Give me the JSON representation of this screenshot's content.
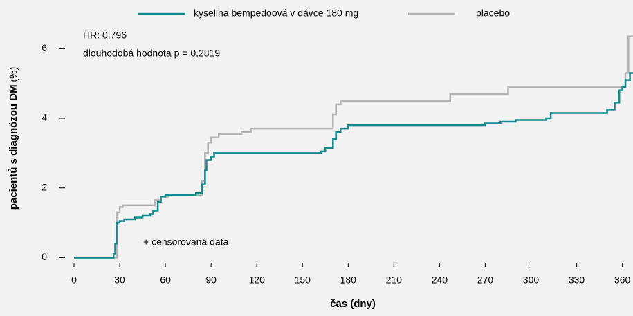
{
  "chart_data": {
    "type": "step",
    "xlabel": "čas (dny)",
    "ylabel": "pacientů s diagnózou DM",
    "ylabel_unit": "(%)",
    "annotations": [
      "HR: 0,796",
      "dlouhodobá hodnota p = 0,2819",
      "+ censorovaná data"
    ],
    "xlim": [
      -5,
      367
    ],
    "ylim": [
      -0.15,
      6.8
    ],
    "xticks": [
      0,
      30,
      60,
      90,
      120,
      150,
      180,
      210,
      240,
      270,
      300,
      330,
      360
    ],
    "yticks": [
      0,
      2,
      4,
      6
    ],
    "legend": "top",
    "series": [
      {
        "name": "kyselina bempedoová v dávce 180 mg",
        "color": "#138a8e",
        "x": [
          0,
          26,
          27,
          28,
          30,
          33,
          40,
          45,
          50,
          52,
          55,
          57,
          60,
          80,
          84,
          86,
          87,
          90,
          92,
          160,
          162,
          165,
          170,
          172,
          175,
          180,
          270,
          280,
          290,
          310,
          313,
          350,
          355,
          358,
          360,
          362,
          365
        ],
        "values": [
          0,
          0.1,
          0.4,
          1.0,
          1.05,
          1.1,
          1.15,
          1.2,
          1.25,
          1.35,
          1.6,
          1.75,
          1.8,
          1.85,
          2.1,
          2.5,
          2.8,
          2.9,
          3.0,
          3.0,
          3.05,
          3.15,
          3.4,
          3.6,
          3.7,
          3.8,
          3.85,
          3.9,
          3.95,
          4.0,
          4.15,
          4.25,
          4.45,
          4.8,
          4.9,
          5.1,
          5.3
        ]
      },
      {
        "name": "placebo",
        "color": "#b3b3b3",
        "x": [
          0,
          28,
          30,
          32,
          53,
          57,
          62,
          84,
          86,
          88,
          90,
          95,
          110,
          116,
          168,
          170,
          172,
          175,
          247,
          285,
          362,
          364
        ],
        "values": [
          0,
          1.3,
          1.45,
          1.5,
          1.65,
          1.75,
          1.8,
          2.2,
          3.0,
          3.3,
          3.45,
          3.55,
          3.6,
          3.7,
          3.7,
          4.1,
          4.4,
          4.5,
          4.7,
          4.9,
          5.3,
          6.35
        ]
      }
    ]
  }
}
